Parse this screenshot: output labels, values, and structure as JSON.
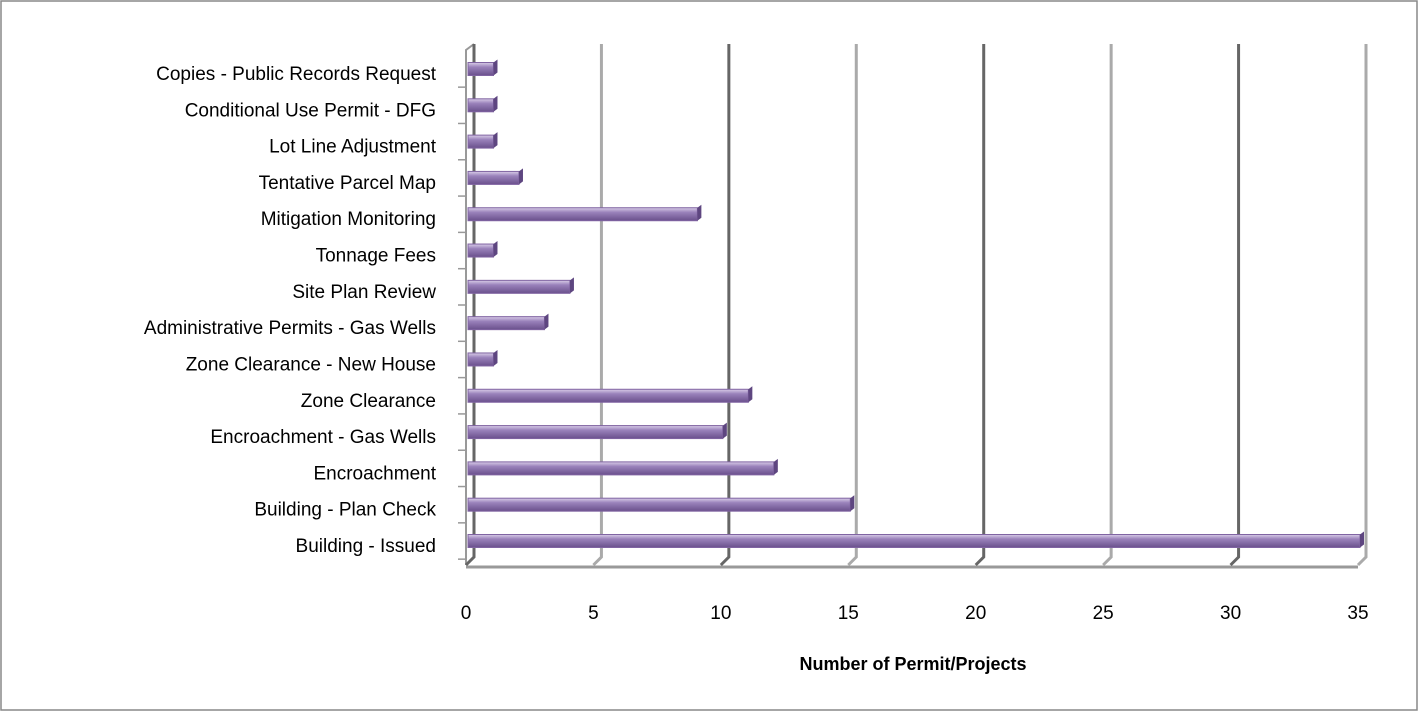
{
  "chart_data": {
    "type": "bar",
    "orientation": "horizontal",
    "x_label": "Number  of Permit/Projects",
    "categories": [
      "Copies - Public Records Request",
      "Conditional Use Permit - DFG",
      "Lot Line Adjustment",
      "Tentative Parcel Map",
      "Mitigation Monitoring",
      "Tonnage Fees",
      "Site Plan Review",
      "Administrative Permits - Gas Wells",
      "Zone Clearance - New House",
      "Zone Clearance",
      "Encroachment - Gas Wells",
      "Encroachment",
      "Building - Plan Check",
      "Building - Issued"
    ],
    "values": [
      1,
      1,
      1,
      2,
      9,
      1,
      4,
      3,
      1,
      11,
      10,
      12,
      15,
      35
    ],
    "color": "#8064a2",
    "xlim": [
      0,
      35
    ],
    "xticks": [
      0,
      5,
      10,
      15,
      20,
      25,
      30,
      35
    ],
    "grid": true
  }
}
